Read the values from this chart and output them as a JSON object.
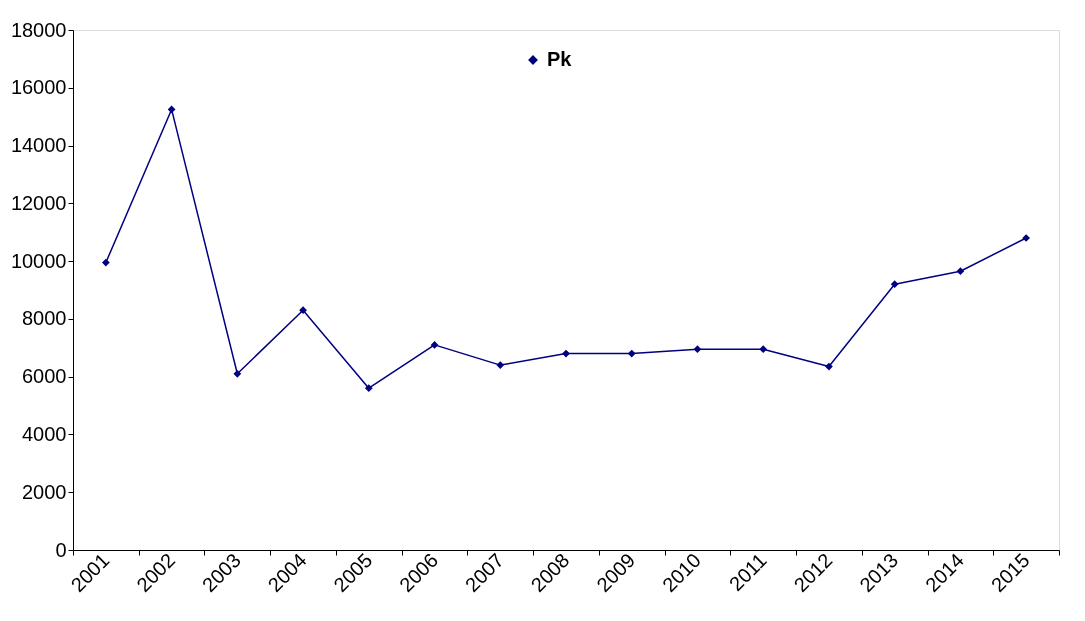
{
  "chart_data": {
    "type": "line",
    "categories": [
      "2001",
      "2002",
      "2003",
      "2004",
      "2005",
      "2006",
      "2007",
      "2008",
      "2009",
      "2010",
      "2011",
      "2012",
      "2013",
      "2014",
      "2015"
    ],
    "series": [
      {
        "name": "Pk",
        "color": "#000080",
        "values": [
          9950,
          15250,
          6100,
          8300,
          5600,
          7100,
          6400,
          6800,
          6800,
          6950,
          6950,
          6350,
          9200,
          9650,
          10800
        ]
      }
    ],
    "ylim": [
      0,
      18000
    ],
    "yticks": [
      0,
      2000,
      4000,
      6000,
      8000,
      10000,
      12000,
      14000,
      16000,
      18000
    ],
    "grid": false,
    "legend": "top",
    "marker": "diamond",
    "line_style": "solid"
  }
}
